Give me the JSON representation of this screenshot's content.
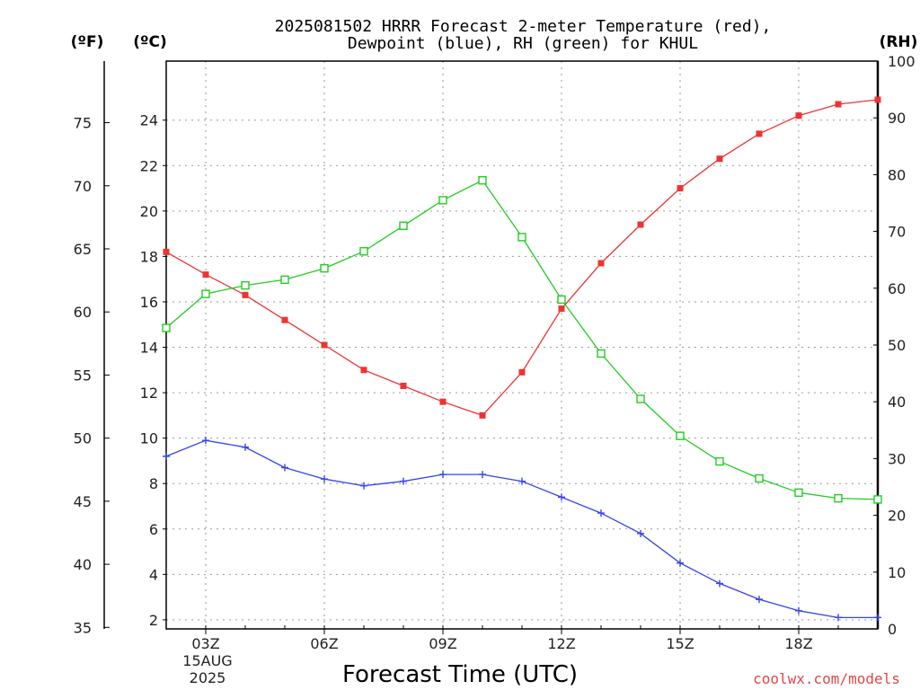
{
  "chart_data": {
    "type": "line",
    "title": "2025081502 HRRR Forecast 2-meter Temperature (red),",
    "title_line2": "Dewpoint (blue), RH (green) for KHUL",
    "xlabel": "Forecast Time (UTC)",
    "x_hours": [
      2,
      3,
      4,
      5,
      6,
      7,
      8,
      9,
      10,
      11,
      12,
      13,
      14,
      15,
      16,
      17,
      18,
      19,
      20
    ],
    "xlim": [
      2,
      20
    ],
    "x_ticks": [
      {
        "hour": 3,
        "label": "03Z"
      },
      {
        "hour": 6,
        "label": "06Z"
      },
      {
        "hour": 9,
        "label": "09Z"
      },
      {
        "hour": 12,
        "label": "12Z"
      },
      {
        "hour": 15,
        "label": "15Z"
      },
      {
        "hour": 18,
        "label": "18Z"
      }
    ],
    "date_label_line1": "15AUG",
    "date_label_line2": "2025",
    "left_unit_f": "(ºF)",
    "left_unit_c": "(ºC)",
    "right_unit": "(RH)",
    "y_celsius": {
      "lim": [
        1.6,
        26.6
      ],
      "ticks": [
        "2",
        "4",
        "6",
        "8",
        "10",
        "12",
        "14",
        "16",
        "18",
        "20",
        "22",
        "24"
      ]
    },
    "y_fahrenheit": {
      "ticks": [
        "35",
        "40",
        "45",
        "50",
        "55",
        "60",
        "65",
        "70",
        "75"
      ]
    },
    "y_rh": {
      "lim": [
        0,
        100
      ],
      "ticks": [
        "0",
        "10",
        "20",
        "30",
        "40",
        "50",
        "60",
        "70",
        "80",
        "90",
        "100"
      ]
    },
    "series": [
      {
        "name": "Temperature (red)",
        "axis": "celsius",
        "color": "#ee3333",
        "marker": "filled-square",
        "values": [
          18.2,
          17.2,
          16.3,
          15.2,
          14.1,
          13.0,
          12.3,
          11.6,
          11.0,
          12.9,
          15.7,
          17.7,
          19.4,
          21.0,
          22.3,
          23.4,
          24.2,
          24.7,
          24.9
        ]
      },
      {
        "name": "Dewpoint (blue)",
        "axis": "celsius",
        "color": "#3344ee",
        "marker": "plus",
        "values": [
          9.2,
          9.9,
          9.6,
          8.7,
          8.2,
          7.9,
          8.1,
          8.4,
          8.4,
          8.1,
          7.4,
          6.7,
          5.8,
          4.5,
          3.6,
          2.9,
          2.4,
          2.1,
          2.1
        ]
      },
      {
        "name": "RH (green)",
        "axis": "rh",
        "color": "#22cc22",
        "marker": "open-square",
        "values": [
          53,
          59,
          60.5,
          61.5,
          63.5,
          66.5,
          71,
          75.5,
          79,
          69,
          58,
          48.5,
          40.5,
          34,
          29.5,
          26.5,
          24,
          23,
          22.8
        ]
      }
    ],
    "credit": "coolwx.com/models"
  }
}
